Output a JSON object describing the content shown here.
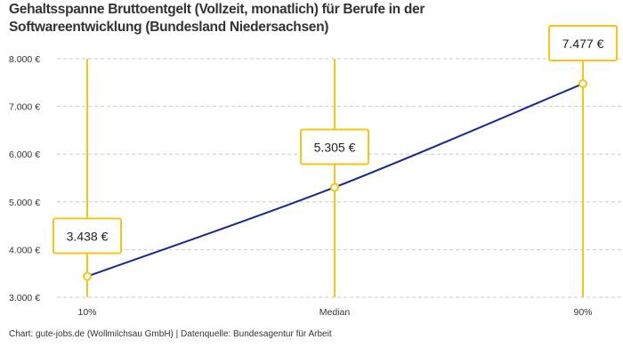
{
  "chart_data": {
    "type": "line",
    "title": "Gehaltsspanne Bruttoentgelt (Vollzeit, monatlich) für Berufe in der Softwareentwicklung (Bundesland Niedersachsen)",
    "categories": [
      "10%",
      "Median",
      "90%"
    ],
    "values": [
      3438,
      5305,
      7477
    ],
    "data_labels": [
      "3.438 €",
      "5.305 €",
      "7.477 €"
    ],
    "ylim": [
      3000,
      8000
    ],
    "yticks": [
      3000,
      4000,
      5000,
      6000,
      7000,
      8000
    ],
    "ytick_labels": [
      "3.000 €",
      "4.000 €",
      "5.000 €",
      "6.000 €",
      "7.000 €",
      "8.000 €"
    ],
    "grid": true,
    "colors": {
      "line": "#1a2a8c",
      "accent": "#f5c518",
      "grid": "#cccccc"
    }
  },
  "credit": "Chart: gute-jobs.de (Wollmilchsau GmbH) | Datenquelle: Bundesagentur für Arbeit"
}
